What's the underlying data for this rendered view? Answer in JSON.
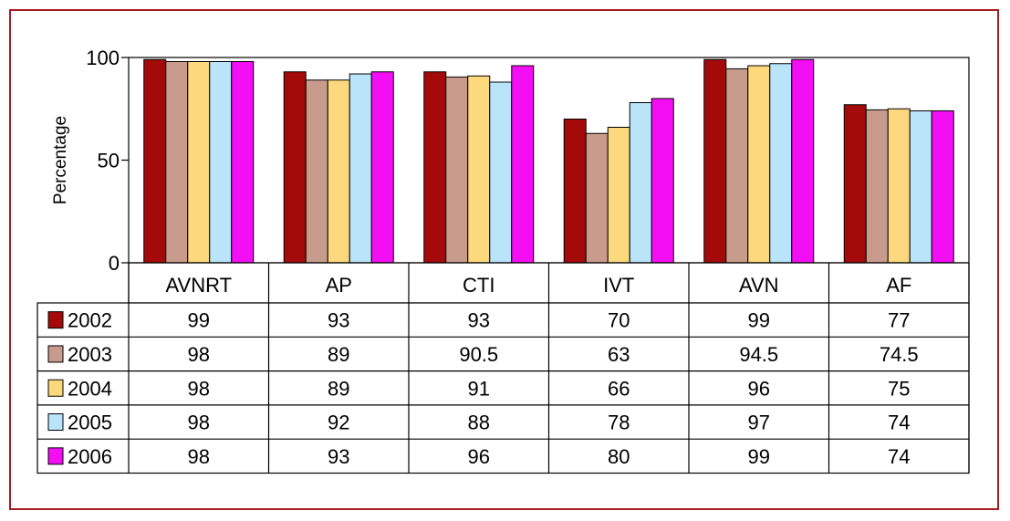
{
  "chart_data": {
    "type": "bar",
    "ylabel": "Percentage",
    "ylim": [
      0,
      100
    ],
    "yticks": [
      "0",
      "50",
      "100"
    ],
    "categories": [
      "AVNRT",
      "AP",
      "CTI",
      "IVT",
      "AVN",
      "AF"
    ],
    "series": [
      {
        "name": "2002",
        "color": "#a50a0a",
        "values": [
          99,
          93,
          93,
          70,
          99,
          77
        ],
        "labels": [
          "99",
          "93",
          "93",
          "70",
          "99",
          "77"
        ]
      },
      {
        "name": "2003",
        "color": "#c99b8c",
        "values": [
          98,
          89,
          90.5,
          63,
          94.5,
          74.5
        ],
        "labels": [
          "98",
          "89",
          "90.5",
          "63",
          "94.5",
          "74.5"
        ]
      },
      {
        "name": "2004",
        "color": "#fdd87c",
        "values": [
          98,
          89,
          91,
          66,
          96,
          75
        ],
        "labels": [
          "98",
          "89",
          "91",
          "66",
          "96",
          "75"
        ]
      },
      {
        "name": "2005",
        "color": "#b9e4fa",
        "values": [
          98,
          92,
          88,
          78,
          97,
          74
        ],
        "labels": [
          "98",
          "92",
          "88",
          "78",
          "97",
          "74"
        ]
      },
      {
        "name": "2006",
        "color": "#f40ef4",
        "values": [
          98,
          93,
          96,
          80,
          99,
          74
        ],
        "labels": [
          "98",
          "93",
          "96",
          "80",
          "99",
          "74"
        ]
      }
    ],
    "grid": false,
    "legend": "data-table-left",
    "frame_color": "#a61c24"
  }
}
